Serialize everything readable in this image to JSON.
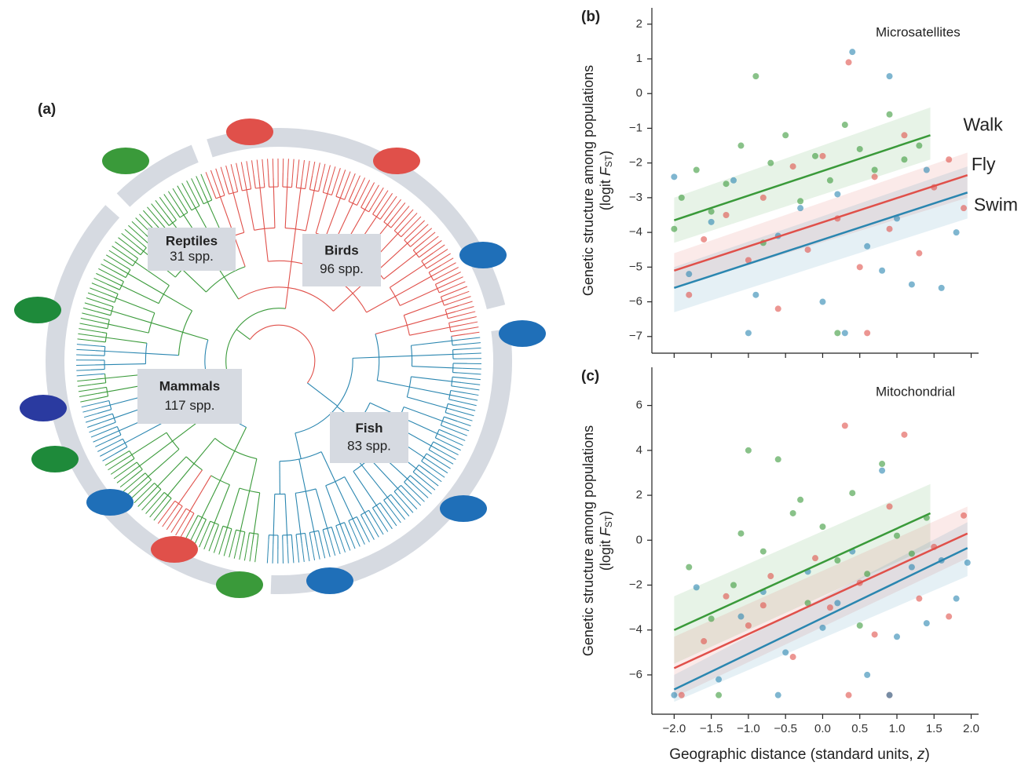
{
  "tree": {
    "panel_label": "(a)",
    "clades": [
      {
        "name": "Reptiles",
        "label": "31 spp."
      },
      {
        "name": "Birds",
        "label": "96 spp."
      },
      {
        "name": "Mammals",
        "label": "117 spp."
      },
      {
        "name": "Fish",
        "label": "83 spp."
      }
    ]
  },
  "chart_data": [
    {
      "type": "scatter",
      "panel_label": "(b)",
      "annotation": "Microsatellites",
      "ylabel": {
        "line1": "Genetic structure among populations",
        "prefix": "(logit ",
        "var": "F",
        "sub": "ST",
        "suffix": ")"
      },
      "xlim": [
        -2.3,
        2.1
      ],
      "ylim": [
        -7.48,
        2.47
      ],
      "yticks": [
        {
          "value": -7,
          "label": "−7"
        },
        {
          "value": -6,
          "label": "−6"
        },
        {
          "value": -5,
          "label": "−5"
        },
        {
          "value": -4,
          "label": "−4"
        },
        {
          "value": -3,
          "label": "−3"
        },
        {
          "value": -2,
          "label": "−2"
        },
        {
          "value": -1,
          "label": "−1"
        },
        0,
        1,
        2
      ],
      "series": [
        {
          "name": "Walk",
          "color": "#3a9a3a",
          "x": [
            -2.0,
            -1.9,
            -1.7,
            -1.5,
            -1.3,
            -1.1,
            -0.9,
            -0.7,
            -0.5,
            -0.3,
            -0.1,
            0.1,
            0.3,
            0.5,
            0.7,
            0.9,
            1.1,
            1.3,
            -0.8,
            0.2
          ],
          "values": [
            -3.9,
            -3.0,
            -2.2,
            -3.4,
            -2.6,
            -1.5,
            0.5,
            -2.0,
            -1.2,
            -3.1,
            -1.8,
            -2.5,
            -0.9,
            -1.6,
            -2.2,
            -0.6,
            -1.9,
            -1.5,
            -4.3,
            -6.9
          ]
        },
        {
          "name": "Fly",
          "color": "#e0504a",
          "x": [
            -1.8,
            -1.6,
            -1.3,
            -1.0,
            -0.8,
            -0.6,
            -0.4,
            -0.2,
            0.0,
            0.2,
            0.35,
            0.5,
            0.7,
            0.9,
            1.1,
            1.3,
            1.5,
            1.7,
            1.9,
            0.6
          ],
          "values": [
            -5.8,
            -4.2,
            -3.5,
            -4.8,
            -3.0,
            -6.2,
            -2.1,
            -4.5,
            -1.8,
            -3.6,
            0.9,
            -5.0,
            -2.4,
            -3.9,
            -1.2,
            -4.6,
            -2.7,
            -1.9,
            -3.3,
            -6.9
          ]
        },
        {
          "name": "Swim",
          "color": "#2a86b0",
          "x": [
            -2.0,
            -1.8,
            -1.5,
            -1.2,
            -0.9,
            -0.6,
            -0.3,
            0.0,
            0.2,
            0.4,
            0.6,
            0.8,
            0.9,
            1.0,
            1.2,
            1.4,
            1.6,
            1.8,
            -1.0,
            0.3
          ],
          "values": [
            -2.4,
            -5.2,
            -3.7,
            -2.5,
            -5.8,
            -4.1,
            -3.3,
            -6.0,
            -2.9,
            1.2,
            -4.4,
            -5.1,
            0.5,
            -3.6,
            -5.5,
            -2.2,
            -5.6,
            -4.0,
            -6.9,
            -6.9
          ]
        }
      ],
      "fits": [
        {
          "color": "#3a9a3a",
          "x": [
            -2.0,
            1.45
          ],
          "values": [
            -3.65,
            -1.2
          ],
          "lower": [
            -4.3,
            -1.9
          ],
          "upper": [
            -3.0,
            -0.4
          ]
        },
        {
          "color": "#e0504a",
          "x": [
            -2.0,
            1.95
          ],
          "values": [
            -5.1,
            -2.35
          ],
          "lower": [
            -5.6,
            -3.0
          ],
          "upper": [
            -4.6,
            -1.7
          ]
        },
        {
          "color": "#2a86b0",
          "x": [
            -2.0,
            1.95
          ],
          "values": [
            -5.6,
            -2.85
          ],
          "lower": [
            -6.3,
            -3.6
          ],
          "upper": [
            -5.0,
            -2.1
          ]
        }
      ]
    },
    {
      "type": "scatter",
      "panel_label": "(c)",
      "annotation": "Mitochondrial",
      "ylabel": {
        "line1": "Genetic structure among populations",
        "prefix": "(logit ",
        "var": "F",
        "sub": "ST",
        "suffix": ")"
      },
      "xlabel": {
        "text": "Geographic distance (standard units, ",
        "var": "z",
        "suffix": ")"
      },
      "xlim": [
        -2.3,
        2.1
      ],
      "ylim": [
        -7.75,
        7.7
      ],
      "xticks": [
        {
          "value": -2,
          "label": "−2.0"
        },
        {
          "value": -1.5,
          "label": "−1.5"
        },
        {
          "value": -1,
          "label": "−1.0"
        },
        {
          "value": -0.5,
          "label": "−0.5"
        },
        {
          "value": 0,
          "label": "0.0"
        },
        0.5,
        {
          "value": 1,
          "label": "1.0"
        },
        1.5,
        {
          "value": 2,
          "label": "2.0"
        }
      ],
      "yticks": [
        {
          "value": -6,
          "label": "−6"
        },
        {
          "value": -4,
          "label": "−4"
        },
        {
          "value": -2,
          "label": "−2"
        },
        0,
        2,
        4,
        6
      ],
      "series": [
        {
          "color": "#3a9a3a",
          "x": [
            -1.8,
            -1.5,
            -1.2,
            -1.0,
            -0.8,
            -0.6,
            -0.4,
            -0.2,
            0.0,
            0.2,
            0.4,
            0.6,
            0.8,
            1.0,
            1.2,
            1.4,
            -1.4,
            -0.3,
            0.5,
            -1.1
          ],
          "values": [
            -1.2,
            -3.5,
            -2.0,
            4.0,
            -0.5,
            3.6,
            1.2,
            -2.8,
            0.6,
            -0.9,
            2.1,
            -1.5,
            3.4,
            0.2,
            -0.6,
            1.0,
            -6.9,
            1.8,
            -3.8,
            0.3
          ]
        },
        {
          "color": "#e0504a",
          "x": [
            -1.9,
            -1.6,
            -1.3,
            -1.0,
            -0.7,
            -0.4,
            -0.1,
            0.1,
            0.3,
            0.5,
            0.7,
            0.9,
            1.1,
            1.3,
            1.5,
            1.7,
            1.9,
            0.35,
            -0.8,
            0.9
          ],
          "values": [
            -6.9,
            -4.5,
            -2.5,
            -3.8,
            -1.6,
            -5.2,
            -0.8,
            -3.0,
            5.1,
            -1.9,
            -4.2,
            1.5,
            4.7,
            -2.6,
            -0.3,
            -3.4,
            1.1,
            -6.9,
            -2.9,
            -6.9
          ]
        },
        {
          "color": "#2a86b0",
          "x": [
            -2.0,
            -1.7,
            -1.4,
            -1.1,
            -0.8,
            -0.5,
            -0.2,
            0.0,
            0.2,
            0.4,
            0.6,
            0.8,
            1.0,
            1.2,
            1.4,
            1.6,
            1.8,
            1.95,
            -0.6,
            0.9
          ],
          "values": [
            -6.9,
            -2.1,
            -6.2,
            -3.4,
            -2.3,
            -5.0,
            -1.4,
            -3.9,
            -2.8,
            -0.5,
            -6.0,
            3.1,
            -4.3,
            -1.2,
            -3.7,
            -0.9,
            -2.6,
            -1.0,
            -6.9,
            -6.9
          ]
        }
      ],
      "fits": [
        {
          "color": "#3a9a3a",
          "x": [
            -2.0,
            1.45
          ],
          "values": [
            -4.0,
            1.2
          ],
          "lower": [
            -5.5,
            -0.3
          ],
          "upper": [
            -2.5,
            2.5
          ]
        },
        {
          "color": "#e0504a",
          "x": [
            -2.0,
            1.95
          ],
          "values": [
            -5.7,
            0.3
          ],
          "lower": [
            -7.0,
            -0.8
          ],
          "upper": [
            -4.3,
            1.5
          ]
        },
        {
          "color": "#2a86b0",
          "x": [
            -2.0,
            1.95
          ],
          "values": [
            -6.65,
            -0.35
          ],
          "lower": [
            -7.2,
            -1.6
          ],
          "upper": [
            -6.0,
            0.8
          ]
        }
      ]
    }
  ]
}
